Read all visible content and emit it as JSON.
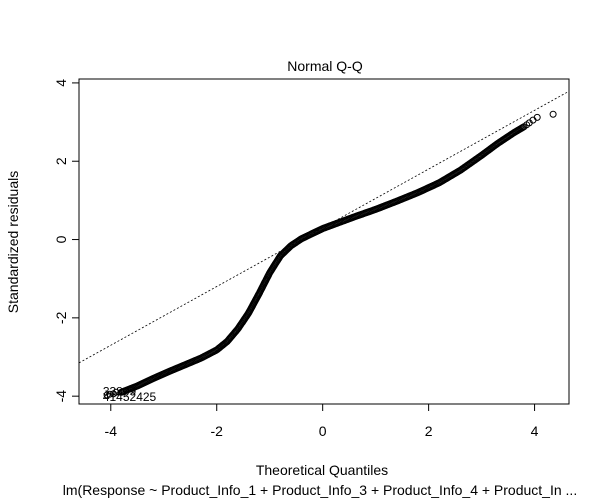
{
  "chart_data": {
    "type": "scatter",
    "title": "Normal Q-Q",
    "xlabel": "Theoretical Quantiles",
    "ylabel": "Standardized residuals",
    "subtitle": "lm(Response ~ Product_Info_1 + Product_Info_3 + Product_Info_4 + Product_In ...",
    "xlim": [
      -4.6,
      4.65
    ],
    "ylim": [
      -4.2,
      4.1
    ],
    "xticks": [
      "-4",
      "-2",
      "0",
      "2",
      "4"
    ],
    "yticks": [
      "-4",
      "-2",
      "0",
      "2",
      "4"
    ],
    "grid": false,
    "reference_line": {
      "intercept": 0.3,
      "slope": 0.75
    },
    "series": [
      {
        "curve": [
          [
            -3.8,
            -3.9
          ],
          [
            -3.5,
            -3.74
          ],
          [
            -3.2,
            -3.55
          ],
          [
            -2.9,
            -3.37
          ],
          [
            -2.6,
            -3.2
          ],
          [
            -2.3,
            -3.03
          ],
          [
            -2.0,
            -2.82
          ],
          [
            -1.8,
            -2.6
          ],
          [
            -1.6,
            -2.28
          ],
          [
            -1.4,
            -1.88
          ],
          [
            -1.2,
            -1.38
          ],
          [
            -1.0,
            -0.85
          ],
          [
            -0.8,
            -0.42
          ],
          [
            -0.6,
            -0.16
          ],
          [
            -0.4,
            0.02
          ],
          [
            -0.2,
            0.15
          ],
          [
            0.0,
            0.28
          ],
          [
            0.3,
            0.43
          ],
          [
            0.6,
            0.58
          ],
          [
            1.0,
            0.77
          ],
          [
            1.4,
            0.98
          ],
          [
            1.8,
            1.2
          ],
          [
            2.2,
            1.45
          ],
          [
            2.6,
            1.77
          ],
          [
            3.0,
            2.15
          ],
          [
            3.3,
            2.45
          ],
          [
            3.6,
            2.72
          ],
          [
            3.8,
            2.88
          ]
        ],
        "tail_points": [
          [
            4.35,
            3.2
          ],
          [
            4.05,
            3.12
          ],
          [
            3.97,
            3.05
          ],
          [
            3.9,
            2.98
          ],
          [
            3.85,
            2.93
          ],
          [
            -3.9,
            -3.9
          ],
          [
            -3.95,
            -3.94
          ],
          [
            -4.02,
            -3.95
          ],
          [
            -4.07,
            -3.97
          ]
        ]
      }
    ],
    "point_labels": [
      {
        "x": -4.15,
        "y": -3.88,
        "text": "33809"
      },
      {
        "x": -4.15,
        "y": -4.02,
        "text": "41452425"
      }
    ]
  }
}
